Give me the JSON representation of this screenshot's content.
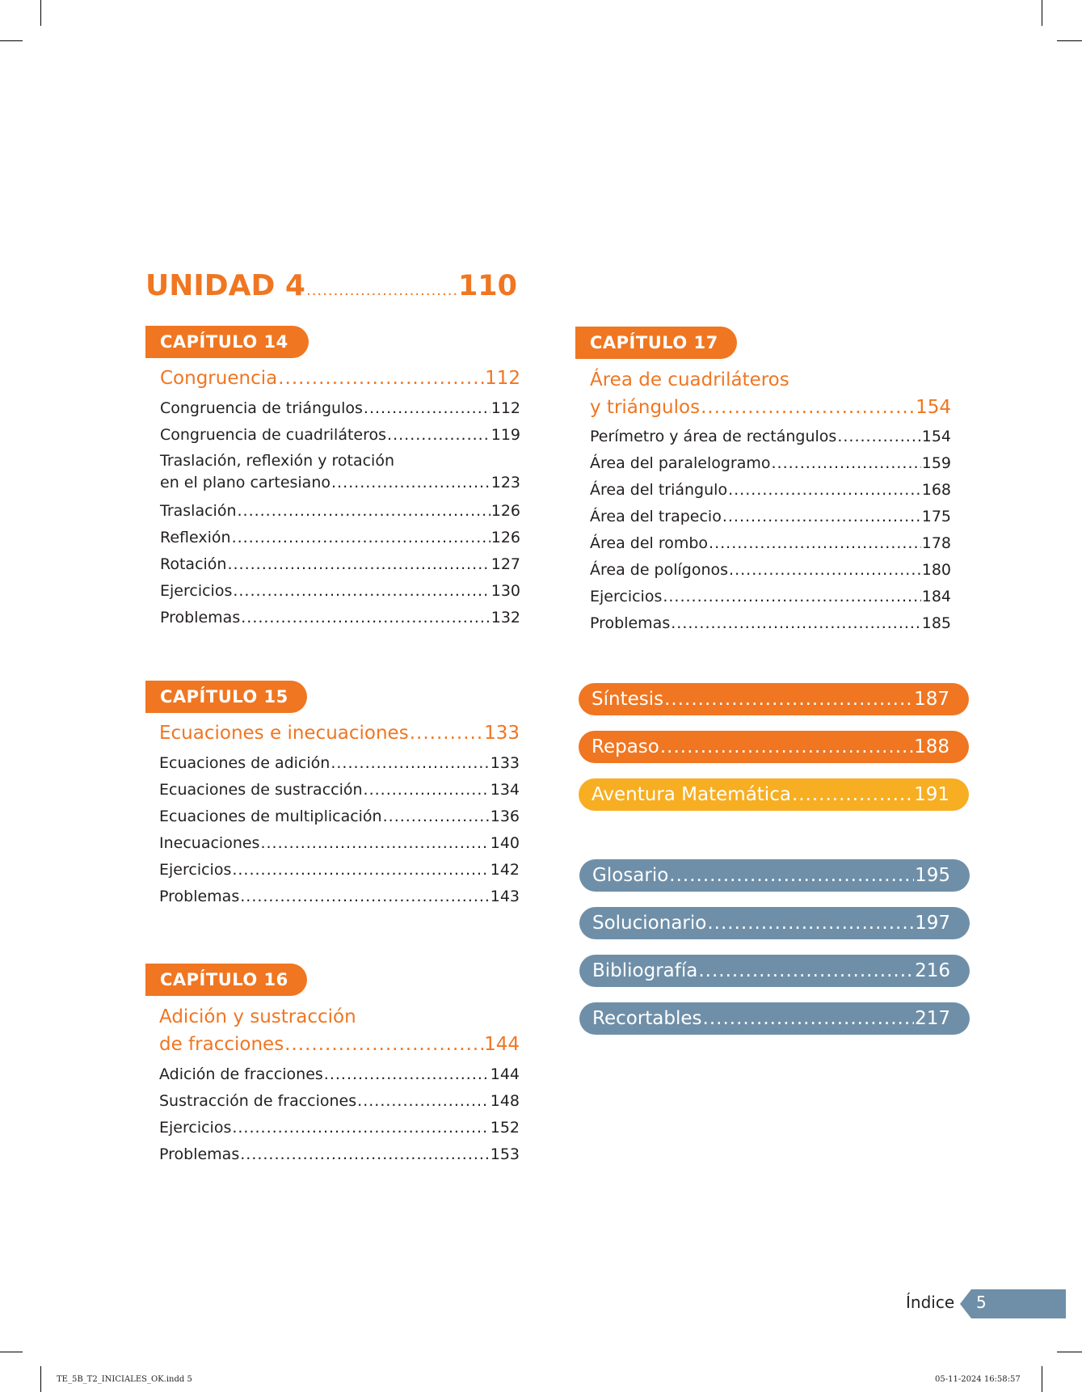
{
  "unit": {
    "label": "UNIDAD 4",
    "page": "110"
  },
  "chapters": [
    {
      "badge": "CAPÍTULO 14",
      "title": "Congruencia",
      "page": "112",
      "items": [
        {
          "label": "Congruencia de triángulos",
          "page": "112"
        },
        {
          "label": "Congruencia de cuadriláteros",
          "page": "119"
        },
        {
          "label_line1": "Traslación, reflexión y rotación",
          "label": "en el plano cartesiano",
          "page": "123"
        },
        {
          "label": "Traslación",
          "page": "126"
        },
        {
          "label": "Reflexión",
          "page": "126"
        },
        {
          "label": "Rotación",
          "page": "127"
        },
        {
          "label": "Ejercicios",
          "page": "130"
        },
        {
          "label": "Problemas",
          "page": "132"
        }
      ]
    },
    {
      "badge": "CAPÍTULO 15",
      "title": "Ecuaciones e inecuaciones",
      "page": "133",
      "items": [
        {
          "label": "Ecuaciones de adición",
          "page": "133"
        },
        {
          "label": "Ecuaciones de sustracción",
          "page": "134"
        },
        {
          "label": "Ecuaciones de multiplicación",
          "page": "136"
        },
        {
          "label": "Inecuaciones",
          "page": "140"
        },
        {
          "label": "Ejercicios",
          "page": "142"
        },
        {
          "label": "Problemas",
          "page": "143"
        }
      ]
    },
    {
      "badge": "CAPÍTULO 16",
      "title_line1": "Adición y sustracción",
      "title": "de fracciones",
      "page": "144",
      "items": [
        {
          "label": "Adición de fracciones",
          "page": "144"
        },
        {
          "label": "Sustracción de fracciones",
          "page": "148"
        },
        {
          "label": "Ejercicios",
          "page": "152"
        },
        {
          "label": "Problemas",
          "page": "153"
        }
      ]
    },
    {
      "badge": "CAPÍTULO 17",
      "title_line1": "Área de cuadriláteros",
      "title": "y triángulos",
      "page": "154",
      "items": [
        {
          "label": "Perímetro y área de rectángulos",
          "page": "154"
        },
        {
          "label": "Área del paralelogramo",
          "page": "159"
        },
        {
          "label": "Área del triángulo",
          "page": "168"
        },
        {
          "label": "Área del trapecio",
          "page": "175"
        },
        {
          "label": "Área del rombo",
          "page": "178"
        },
        {
          "label": "Área de polígonos",
          "page": "180"
        },
        {
          "label": "Ejercicios",
          "page": "184"
        },
        {
          "label": "Problemas",
          "page": "185"
        }
      ]
    }
  ],
  "sections": [
    {
      "label": "Síntesis",
      "page": "187",
      "color": "#f07621"
    },
    {
      "label": "Repaso",
      "page": "188",
      "color": "#f07621"
    },
    {
      "label": "Aventura Matemática",
      "page": "191",
      "color": "#f7ae22"
    },
    {
      "label": "Glosario",
      "page": "195",
      "color": "#6f8fa8"
    },
    {
      "label": "Solucionario",
      "page": "197",
      "color": "#6f8fa8"
    },
    {
      "label": "Bibliografía",
      "page": "216",
      "color": "#6f8fa8"
    },
    {
      "label": "Recortables",
      "page": "217",
      "color": "#6f8fa8"
    }
  ],
  "footer": {
    "index_label": "Índice",
    "page_number": "5"
  },
  "slug": {
    "file": "TE_5B_T2_INICIALES_OK.indd   5",
    "timestamp": "05-11-2024   16:58:57"
  }
}
